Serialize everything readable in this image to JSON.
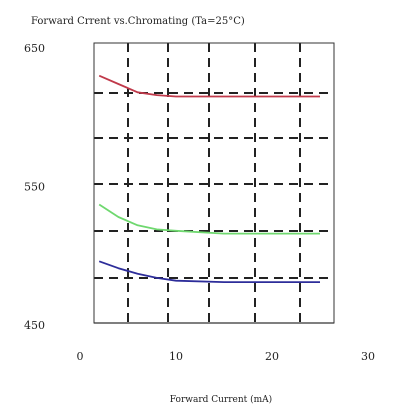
{
  "chart_data": {
    "type": "line",
    "title": "Forward Crrent vs.Chromating (Ta=25°C)",
    "xlabel": "Forward Current (mA)",
    "ylabel": "",
    "xlim": [
      0,
      30
    ],
    "ylim": [
      450,
      650
    ],
    "xticks": [
      0,
      10,
      20,
      30
    ],
    "xtick_labels": [
      "0",
      "10",
      "20",
      "30"
    ],
    "yticks": [
      450,
      550,
      650
    ],
    "ytick_labels": [
      "450",
      "550",
      "650"
    ],
    "grid": "dashed",
    "series": [
      {
        "color": "#c0394a",
        "x": [
          2,
          4,
          6,
          8,
          10,
          15,
          20,
          25
        ],
        "y": [
          630,
          624,
          618,
          616,
          615,
          615,
          615,
          615
        ]
      },
      {
        "color": "#6fd86f",
        "x": [
          2,
          4,
          6,
          8,
          10,
          15,
          20,
          25
        ],
        "y": [
          537,
          528,
          522,
          519,
          518,
          516,
          516,
          516
        ]
      },
      {
        "color": "#2d2d9a",
        "x": [
          2,
          4,
          6,
          8,
          10,
          15,
          20,
          25
        ],
        "y": [
          496,
          491,
          487,
          484,
          482,
          481,
          481,
          481
        ]
      }
    ]
  }
}
